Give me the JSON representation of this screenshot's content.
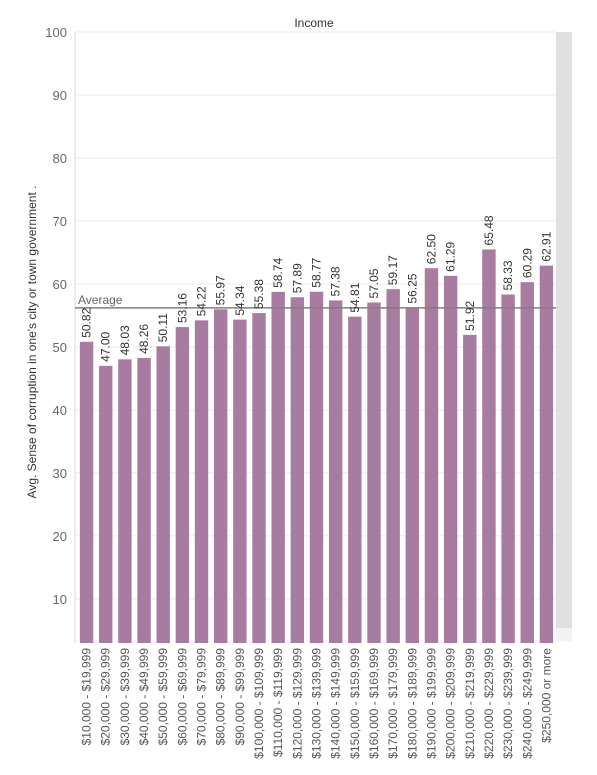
{
  "chart_data": {
    "type": "bar",
    "title": "Income",
    "xlabel": "",
    "ylabel": "Avg. Sense of corruption in one's city or town government .",
    "ylim": [
      3,
      100
    ],
    "yticks": [
      10,
      20,
      30,
      40,
      50,
      60,
      70,
      80,
      90,
      100
    ],
    "grid": true,
    "categories": [
      "$10,000 - $19,999",
      "$20,000 - $29,999",
      "$30,000 - $39,999",
      "$40,000 - $49,999",
      "$50,000 - $59,999",
      "$60,000 - $69,999",
      "$70,000 - $79,999",
      "$80,000 - $89,999",
      "$90,000 - $99,999",
      "$100,000 - $109,999",
      "$110,000 - $119,999",
      "$120,000 - $129,999",
      "$130,000 - $139,999",
      "$140,000 - $149,999",
      "$150,000 - $159,999",
      "$160,000 - $169,999",
      "$170,000 - $179,999",
      "$180,000 - $189,999",
      "$190,000 - $199,999",
      "$200,000 - $209,999",
      "$210,000 - $219,999",
      "$220,000 - $229,999",
      "$230,000 - $239,999",
      "$240,000 - $249,999",
      "$250,000 or more"
    ],
    "values": [
      50.82,
      47.0,
      48.03,
      48.26,
      50.11,
      53.16,
      54.22,
      55.97,
      54.34,
      55.38,
      58.74,
      57.89,
      58.77,
      57.38,
      54.81,
      57.05,
      59.17,
      56.25,
      62.5,
      61.29,
      51.92,
      65.48,
      58.33,
      60.29,
      62.91
    ],
    "data_labels": [
      "50.82",
      "47.00",
      "48.03",
      "48.26",
      "50.11",
      "53.16",
      "54.22",
      "55.97",
      "54.34",
      "55.38",
      "58.74",
      "57.89",
      "58.77",
      "57.38",
      "54.81",
      "57.05",
      "59.17",
      "56.25",
      "62.50",
      "61.29",
      "51.92",
      "65.48",
      "58.33",
      "60.29",
      "62.91"
    ],
    "reference_line": {
      "label": "Average",
      "value": 56.2
    },
    "colors": {
      "bar": "#a87ca0",
      "grid": "#ebebeb",
      "reference": "#7f7f7f",
      "scrollbar": "#e0e0e0"
    }
  }
}
